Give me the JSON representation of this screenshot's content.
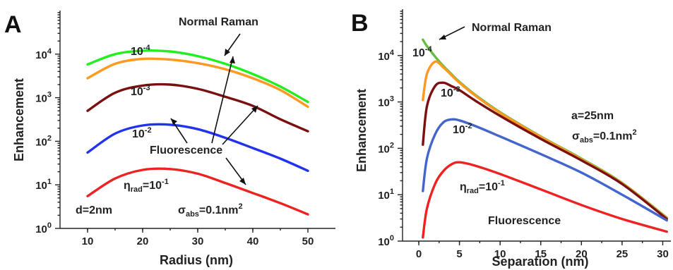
{
  "chart_data": [
    {
      "panel": "A",
      "type": "line",
      "xlabel": "Radius (nm)",
      "ylabel": "Enhancement",
      "xlim": [
        5,
        55
      ],
      "ylim": [
        1,
        100000
      ],
      "yscale": "log",
      "xticks": [
        10,
        20,
        30,
        40,
        50
      ],
      "yticks": [
        "10^0",
        "10^1",
        "10^2",
        "10^3",
        "10^4"
      ],
      "series": [
        {
          "name": "Normal Raman",
          "color": "#22ee22",
          "x": [
            10,
            15,
            20,
            25,
            30,
            35,
            40,
            45,
            50
          ],
          "y": [
            5800,
            10000,
            12000,
            11500,
            9000,
            6000,
            3500,
            1800,
            800
          ]
        },
        {
          "name": "10^-4",
          "color": "#ff9922",
          "x": [
            10,
            15,
            20,
            25,
            30,
            35,
            40,
            45,
            50
          ],
          "y": [
            2800,
            6000,
            7800,
            7500,
            6200,
            4500,
            2800,
            1500,
            620
          ]
        },
        {
          "name": "10^-3",
          "color": "#7a1010",
          "x": [
            10,
            15,
            20,
            25,
            30,
            35,
            40,
            45,
            50
          ],
          "y": [
            500,
            1300,
            1900,
            2000,
            1600,
            1050,
            650,
            320,
            170
          ]
        },
        {
          "name": "10^-2",
          "color": "#2233ee",
          "x": [
            10,
            15,
            20,
            25,
            30,
            35,
            40,
            45,
            50
          ],
          "y": [
            55,
            150,
            230,
            240,
            190,
            120,
            70,
            40,
            21
          ]
        },
        {
          "name": "η_rad=10^-1",
          "color": "#ee2222",
          "x": [
            10,
            15,
            20,
            25,
            30,
            35,
            40,
            45,
            50
          ],
          "y": [
            5.5,
            14,
            22,
            23,
            18,
            11,
            6.5,
            3.8,
            2.1
          ]
        }
      ],
      "annotations": [
        "Normal Raman",
        "Fluorescence",
        "d=2nm",
        "σ_abs=0.1nm²"
      ]
    },
    {
      "panel": "B",
      "type": "line",
      "xlabel": "Separation (nm)",
      "ylabel": "Enhancement",
      "xlim": [
        -2,
        31
      ],
      "ylim": [
        1,
        100000
      ],
      "yscale": "log",
      "xticks": [
        0,
        5,
        10,
        15,
        20,
        25,
        30
      ],
      "yticks": [
        "10^0",
        "10^1",
        "10^2",
        "10^3",
        "10^4"
      ],
      "series": [
        {
          "name": "Normal Raman",
          "color": "#66bb44",
          "x": [
            0.5,
            1,
            2,
            3,
            4,
            5,
            7,
            10,
            15,
            20,
            25,
            30.5
          ],
          "y": [
            22000,
            16000,
            9500,
            6000,
            4000,
            2700,
            1400,
            600,
            180,
            60,
            18,
            3.2
          ]
        },
        {
          "name": "10^-4",
          "color": "#ff9922",
          "x": [
            0.5,
            1,
            2,
            3,
            4,
            5,
            7,
            10,
            15,
            20,
            25,
            30.5
          ],
          "y": [
            1100,
            4000,
            7400,
            5600,
            3800,
            2600,
            1350,
            580,
            175,
            58,
            17.5,
            3.1
          ]
        },
        {
          "name": "10^-3",
          "color": "#7a1010",
          "x": [
            0.5,
            1,
            2,
            3,
            4,
            5,
            7,
            10,
            15,
            20,
            25,
            30.5
          ],
          "y": [
            120,
            800,
            2200,
            2600,
            2200,
            1800,
            1050,
            500,
            160,
            55,
            17,
            3.0
          ]
        },
        {
          "name": "10^-2",
          "color": "#4466cc",
          "x": [
            0.5,
            1,
            2,
            3,
            4,
            5,
            7,
            10,
            15,
            20,
            25,
            30.5
          ],
          "y": [
            12,
            60,
            200,
            360,
            420,
            400,
            300,
            180,
            75,
            30,
            10,
            2.8
          ]
        },
        {
          "name": "η_rad=10^-1",
          "color": "#ee2222",
          "x": [
            0.5,
            1,
            2,
            3,
            4,
            5,
            7,
            10,
            15,
            20,
            25,
            30.5
          ],
          "y": [
            1.2,
            5,
            17,
            32,
            45,
            50,
            42,
            28,
            13,
            6,
            3.0,
            1.6
          ]
        }
      ],
      "annotations": [
        "Normal Raman",
        "Fluorescence",
        "a=25nm",
        "σ_abs=0.1nm²"
      ]
    }
  ]
}
